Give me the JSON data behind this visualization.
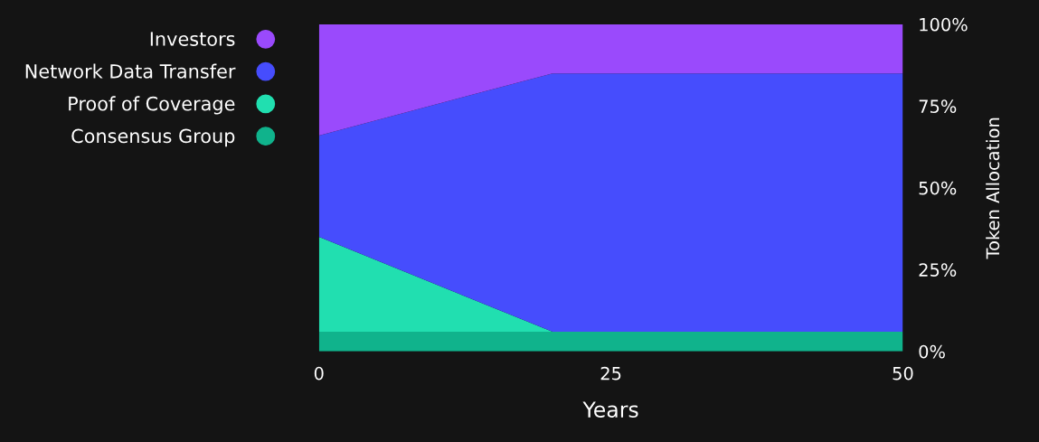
{
  "chart_data": {
    "type": "area",
    "stacked": true,
    "x": [
      0,
      20,
      50
    ],
    "series": [
      {
        "name": "Consensus Group",
        "color": "#10b38c",
        "values": [
          6,
          6,
          6
        ]
      },
      {
        "name": "Proof of Coverage",
        "color": "#21dfb0",
        "values": [
          29,
          0,
          0
        ]
      },
      {
        "name": "Network Data Transfer",
        "color": "#464dfd",
        "values": [
          31,
          79,
          79
        ]
      },
      {
        "name": "Investors",
        "color": "#9a4afc",
        "values": [
          34,
          15,
          15
        ]
      }
    ],
    "xlabel": "Years",
    "ylabel": "Token Allocation",
    "xlim": [
      0,
      50
    ],
    "xticks": [
      0,
      25,
      50
    ],
    "ylim": [
      0,
      100
    ],
    "yticks": [
      {
        "value": 0,
        "label": "0%"
      },
      {
        "value": 25,
        "label": "25%"
      },
      {
        "value": 50,
        "label": "50%"
      },
      {
        "value": 75,
        "label": "75%"
      },
      {
        "value": 100,
        "label": "100%"
      }
    ],
    "grid": false,
    "legend": "left"
  }
}
